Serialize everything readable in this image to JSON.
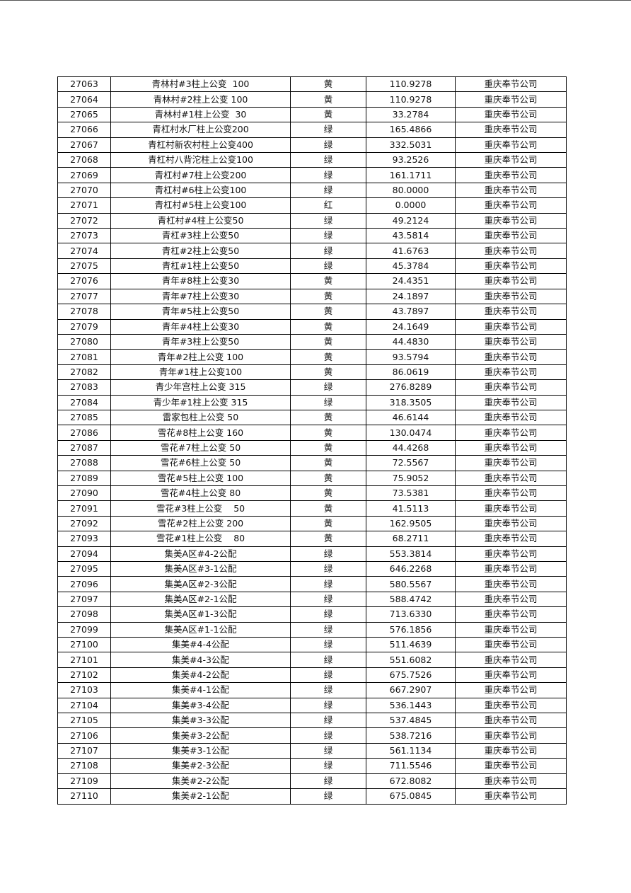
{
  "rows": [
    [
      "27063",
      "青林村#3柱上公变  100",
      "黄",
      "110.9278",
      "重庆奉节公司"
    ],
    [
      "27064",
      "青林村#2柱上公变 100",
      "黄",
      "110.9278",
      "重庆奉节公司"
    ],
    [
      "27065",
      "青林村#1柱上公变  30",
      "黄",
      "33.2784",
      "重庆奉节公司"
    ],
    [
      "27066",
      "青杠村水厂柱上公变200",
      "绿",
      "165.4866",
      "重庆奉节公司"
    ],
    [
      "27067",
      "青杠村新农村柱上公变400",
      "绿",
      "332.5031",
      "重庆奉节公司"
    ],
    [
      "27068",
      "青杠村八背沱柱上公变100",
      "绿",
      "93.2526",
      "重庆奉节公司"
    ],
    [
      "27069",
      "青杠村#7柱上公变200",
      "绿",
      "161.1711",
      "重庆奉节公司"
    ],
    [
      "27070",
      "青杠村#6柱上公变100",
      "绿",
      "80.0000",
      "重庆奉节公司"
    ],
    [
      "27071",
      "青杠村#5柱上公变100",
      "红",
      "0.0000",
      "重庆奉节公司"
    ],
    [
      "27072",
      "青杠村#4柱上公变50",
      "绿",
      "49.2124",
      "重庆奉节公司"
    ],
    [
      "27073",
      "青杠#3柱上公变50",
      "绿",
      "43.5814",
      "重庆奉节公司"
    ],
    [
      "27074",
      "青杠#2柱上公变50",
      "绿",
      "41.6763",
      "重庆奉节公司"
    ],
    [
      "27075",
      "青杠#1柱上公变50",
      "绿",
      "45.3784",
      "重庆奉节公司"
    ],
    [
      "27076",
      "青年#8柱上公变30",
      "黄",
      "24.4351",
      "重庆奉节公司"
    ],
    [
      "27077",
      "青年#7柱上公变30",
      "黄",
      "24.1897",
      "重庆奉节公司"
    ],
    [
      "27078",
      "青年#5柱上公变50",
      "黄",
      "43.7897",
      "重庆奉节公司"
    ],
    [
      "27079",
      "青年#4柱上公变30",
      "黄",
      "24.1649",
      "重庆奉节公司"
    ],
    [
      "27080",
      "青年#3柱上公变50",
      "黄",
      "44.4830",
      "重庆奉节公司"
    ],
    [
      "27081",
      "青年#2柱上公变 100",
      "黄",
      "93.5794",
      "重庆奉节公司"
    ],
    [
      "27082",
      "青年#1柱上公变100",
      "黄",
      "86.0619",
      "重庆奉节公司"
    ],
    [
      "27083",
      "青少年宫柱上公变 315",
      "绿",
      "276.8289",
      "重庆奉节公司"
    ],
    [
      "27084",
      "青少年#1柱上公变 315",
      "绿",
      "318.3505",
      "重庆奉节公司"
    ],
    [
      "27085",
      "雷家包柱上公变 50",
      "黄",
      "46.6144",
      "重庆奉节公司"
    ],
    [
      "27086",
      "雪花#8柱上公变 160",
      "黄",
      "130.0474",
      "重庆奉节公司"
    ],
    [
      "27087",
      "雪花#7柱上公变 50",
      "黄",
      "44.4268",
      "重庆奉节公司"
    ],
    [
      "27088",
      "雪花#6柱上公变 50",
      "黄",
      "72.5567",
      "重庆奉节公司"
    ],
    [
      "27089",
      "雪花#5柱上公变 100",
      "黄",
      "75.9052",
      "重庆奉节公司"
    ],
    [
      "27090",
      "雪花#4柱上公变 80",
      "黄",
      "73.5381",
      "重庆奉节公司"
    ],
    [
      "27091",
      "雪花#3柱上公变    50",
      "黄",
      "41.5113",
      "重庆奉节公司"
    ],
    [
      "27092",
      "雪花#2柱上公变 200",
      "黄",
      "162.9505",
      "重庆奉节公司"
    ],
    [
      "27093",
      "雪花#1柱上公变    80",
      "黄",
      "68.2711",
      "重庆奉节公司"
    ],
    [
      "27094",
      "集美A区#4-2公配",
      "绿",
      "553.3814",
      "重庆奉节公司"
    ],
    [
      "27095",
      "集美A区#3-1公配",
      "绿",
      "646.2268",
      "重庆奉节公司"
    ],
    [
      "27096",
      "集美A区#2-3公配",
      "绿",
      "580.5567",
      "重庆奉节公司"
    ],
    [
      "27097",
      "集美A区#2-1公配",
      "绿",
      "588.4742",
      "重庆奉节公司"
    ],
    [
      "27098",
      "集美A区#1-3公配",
      "绿",
      "713.6330",
      "重庆奉节公司"
    ],
    [
      "27099",
      "集美A区#1-1公配",
      "绿",
      "576.1856",
      "重庆奉节公司"
    ],
    [
      "27100",
      "集美#4-4公配",
      "绿",
      "511.4639",
      "重庆奉节公司"
    ],
    [
      "27101",
      "集美#4-3公配",
      "绿",
      "551.6082",
      "重庆奉节公司"
    ],
    [
      "27102",
      "集美#4-2公配",
      "绿",
      "675.7526",
      "重庆奉节公司"
    ],
    [
      "27103",
      "集美#4-1公配",
      "绿",
      "667.2907",
      "重庆奉节公司"
    ],
    [
      "27104",
      "集美#3-4公配",
      "绿",
      "536.1443",
      "重庆奉节公司"
    ],
    [
      "27105",
      "集美#3-3公配",
      "绿",
      "537.4845",
      "重庆奉节公司"
    ],
    [
      "27106",
      "集美#3-2公配",
      "绿",
      "538.7216",
      "重庆奉节公司"
    ],
    [
      "27107",
      "集美#3-1公配",
      "绿",
      "561.1134",
      "重庆奉节公司"
    ],
    [
      "27108",
      "集美#2-3公配",
      "绿",
      "711.5546",
      "重庆奉节公司"
    ],
    [
      "27109",
      "集美#2-2公配",
      "绿",
      "672.8082",
      "重庆奉节公司"
    ],
    [
      "27110",
      "集美#2-1公配",
      "绿",
      "675.0845",
      "重庆奉节公司"
    ]
  ]
}
